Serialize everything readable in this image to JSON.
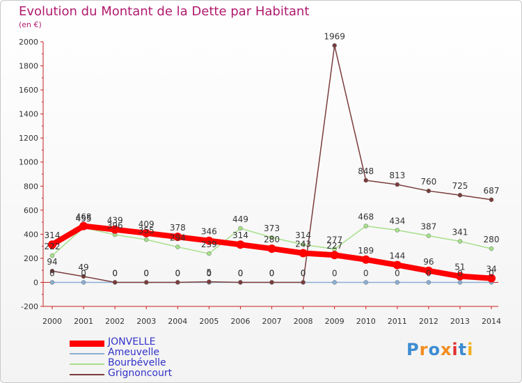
{
  "header": {
    "title": "Evolution du Montant de la Dette par Habitant",
    "subtitle": "(en €)"
  },
  "logo": {
    "text": "Proxiti",
    "letter_colors": [
      "#3c8cd2",
      "#f28c1e",
      "#3c8cd2",
      "#f28c1e",
      "#e03030",
      "#3c8cd2",
      "#f2b01e"
    ]
  },
  "colors": {
    "axis": "#c81e1e",
    "grid": "#e6e6e6",
    "tick_label": "#333333",
    "data_label": "#333333"
  },
  "chart_data": {
    "type": "line",
    "title": "Evolution du Montant de la Dette par Habitant",
    "ylabel": "(en €)",
    "xlabel": "",
    "x": [
      "2000",
      "2001",
      "2002",
      "2003",
      "2004",
      "2005",
      "2006",
      "2007",
      "2008",
      "2009",
      "2010",
      "2011",
      "2012",
      "2013",
      "2014"
    ],
    "ylim": [
      -200,
      2000
    ],
    "yticks": [
      -200,
      0,
      200,
      400,
      600,
      800,
      1000,
      1200,
      1400,
      1600,
      1800,
      2000
    ],
    "grid": false,
    "legend_position": "bottom-left",
    "series": [
      {
        "name": "JONVELLE",
        "color": "#ff0000",
        "width": 8,
        "values": [
          314,
          468,
          439,
          409,
          378,
          346,
          314,
          280,
          243,
          227,
          189,
          144,
          96,
          51,
          34
        ]
      },
      {
        "name": "Ameuvelle",
        "color": "#8aaed2",
        "width": 1.5,
        "values": [
          0,
          0,
          0,
          0,
          0,
          0,
          0,
          0,
          0,
          0,
          0,
          0,
          0,
          0,
          0
        ]
      },
      {
        "name": "Bourbévelle",
        "color": "#a6e08a",
        "width": 1.5,
        "values": [
          222,
          455,
          396,
          355,
          294,
          239,
          449,
          373,
          314,
          277,
          468,
          434,
          387,
          341,
          280
        ]
      },
      {
        "name": "Grignoncourt",
        "color": "#7a3c3c",
        "width": 1.5,
        "values": [
          94,
          49,
          0,
          0,
          0,
          5,
          0,
          0,
          0,
          1969,
          848,
          813,
          760,
          725,
          687
        ]
      }
    ]
  }
}
